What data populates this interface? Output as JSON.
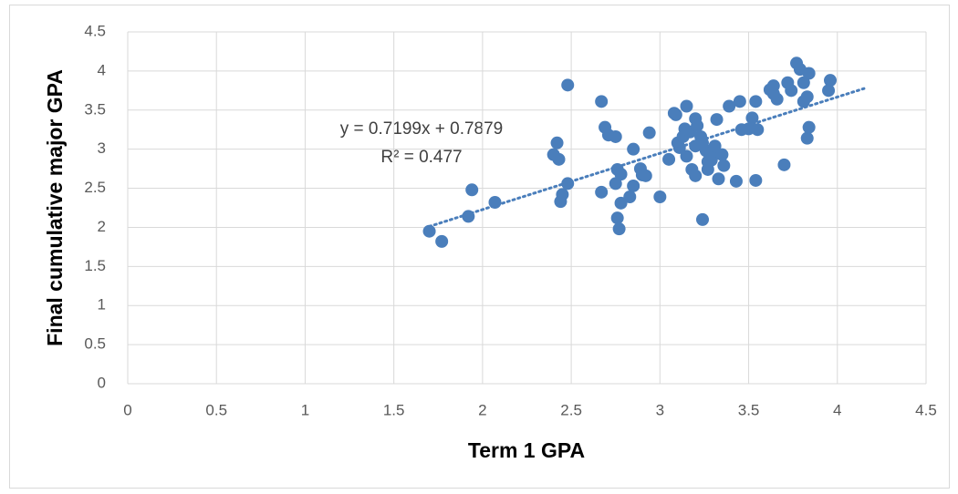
{
  "chart_data": {
    "type": "scatter",
    "xlabel": "Term 1 GPA",
    "ylabel": "Final cumulative major GPA",
    "color": "#4a7ebb",
    "grid": true,
    "xlim": [
      0,
      4.5
    ],
    "ylim": [
      0,
      4.5
    ],
    "xticks": [
      0,
      0.5,
      1,
      1.5,
      2,
      2.5,
      3,
      3.5,
      4,
      4.5
    ],
    "yticks": [
      0,
      0.5,
      1,
      1.5,
      2,
      2.5,
      3,
      3.5,
      4,
      4.5
    ],
    "x": [
      1.7,
      1.77,
      1.94,
      1.92,
      2.07,
      2.4,
      2.42,
      2.43,
      2.44,
      2.45,
      2.48,
      2.48,
      2.67,
      2.67,
      2.69,
      2.71,
      2.75,
      2.76,
      2.75,
      2.76,
      2.77,
      2.78,
      2.78,
      2.83,
      2.85,
      2.85,
      2.89,
      2.9,
      2.92,
      2.94,
      3.0,
      3.05,
      3.08,
      3.09,
      3.1,
      3.11,
      3.13,
      3.14,
      3.15,
      3.15,
      3.17,
      3.18,
      3.2,
      3.2,
      3.2,
      3.21,
      3.23,
      3.24,
      3.24,
      3.26,
      3.27,
      3.27,
      3.29,
      3.3,
      3.31,
      3.32,
      3.33,
      3.35,
      3.36,
      3.39,
      3.43,
      3.45,
      3.46,
      3.5,
      3.52,
      3.54,
      3.54,
      3.55,
      3.7,
      3.72,
      3.74,
      3.77,
      3.79,
      3.81,
      3.81,
      3.83,
      3.83,
      3.84,
      3.84,
      3.62,
      3.64,
      3.66,
      3.64,
      3.96,
      3.95
    ],
    "values": [
      1.95,
      1.82,
      2.48,
      2.14,
      2.32,
      2.93,
      3.08,
      2.87,
      2.33,
      2.42,
      2.56,
      3.82,
      2.45,
      3.61,
      3.28,
      3.18,
      3.16,
      2.74,
      2.56,
      2.12,
      1.98,
      2.31,
      2.68,
      2.39,
      2.53,
      3.0,
      2.75,
      2.67,
      2.66,
      3.21,
      2.39,
      2.87,
      3.46,
      3.44,
      3.08,
      3.02,
      3.16,
      3.26,
      3.55,
      2.91,
      3.22,
      2.74,
      3.39,
      3.04,
      2.66,
      3.3,
      3.16,
      3.08,
      2.1,
      2.98,
      2.84,
      2.74,
      2.86,
      2.97,
      3.04,
      3.38,
      2.62,
      2.93,
      2.79,
      3.55,
      2.59,
      3.61,
      3.25,
      3.26,
      3.4,
      3.61,
      2.6,
      3.25,
      2.8,
      3.85,
      3.75,
      4.1,
      4.02,
      3.85,
      3.61,
      3.67,
      3.14,
      3.28,
      3.97,
      3.76,
      3.81,
      3.64,
      3.71,
      3.88,
      3.75
    ],
    "trendline": {
      "label": "y = 0.7199x + 0.7879",
      "r2_label": "R² = 0.477",
      "slope": 0.7199,
      "intercept": 0.7879,
      "xlim": [
        1.7,
        4.15
      ]
    }
  }
}
